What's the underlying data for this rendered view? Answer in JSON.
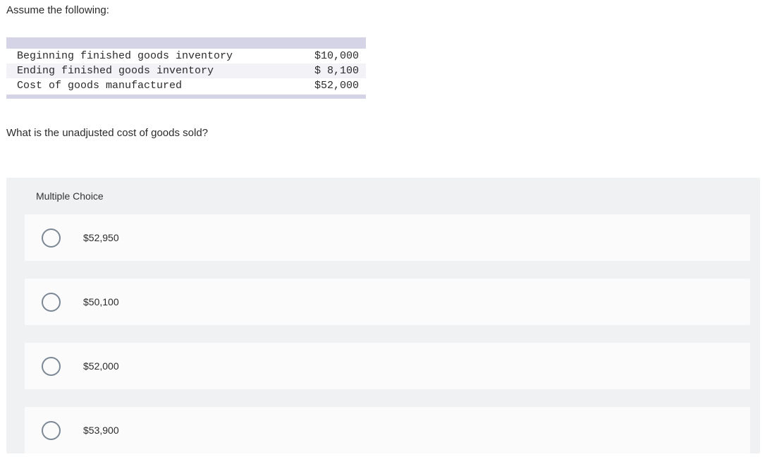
{
  "intro": "Assume the following:",
  "table": {
    "rows": [
      {
        "label": "Beginning finished goods inventory",
        "value": "$10,000",
        "alt": false
      },
      {
        "label": "Ending finished goods inventory",
        "value": "$ 8,100",
        "alt": true
      },
      {
        "label": "Cost of goods manufactured",
        "value": "$52,000",
        "alt": false
      }
    ],
    "bar_color": "#d4d4e6",
    "alt_row_color": "#f2f2f7"
  },
  "question": "What is the unadjusted cost of goods sold?",
  "mc": {
    "header": "Multiple Choice",
    "options": [
      {
        "label": "$52,950"
      },
      {
        "label": "$50,100"
      },
      {
        "label": "$52,000"
      },
      {
        "label": "$53,900"
      }
    ],
    "container_bg": "#f0f1f3",
    "option_bg": "#fbfbfc",
    "radio_border": "#7b8794"
  }
}
